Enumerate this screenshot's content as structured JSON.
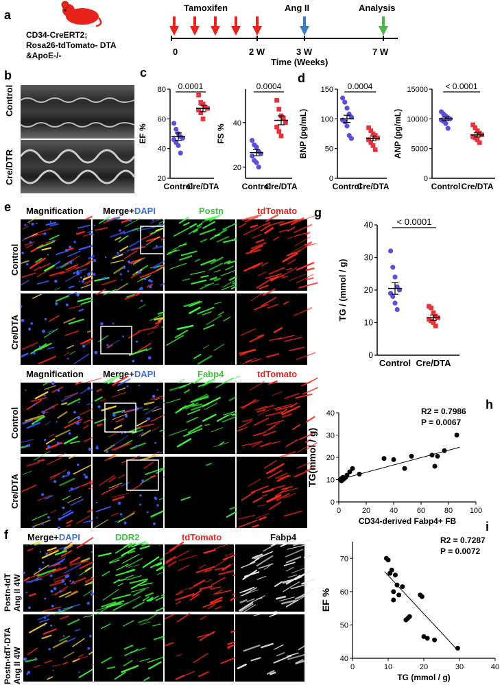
{
  "panel_labels": {
    "a": "a",
    "b": "b",
    "c": "c",
    "d": "d",
    "e": "e",
    "f": "f",
    "g": "g",
    "h": "h",
    "i": "i"
  },
  "panel_a": {
    "genotype_line1": "CD34-CreERT2;",
    "genotype_line2": "Rosa26-tdTomato- DTA",
    "genotype_line3": "&ApoE-/-",
    "tamoxifen_label": "Tamoxifen",
    "angii_label": "Ang II",
    "analysis_label": "Analysis",
    "tick_0": "0",
    "tick_2w": "2 W",
    "tick_3w": "3 W",
    "tick_7w": "7 W",
    "axis_label": "Time (Weeks)",
    "colors": {
      "tamoxifen": "#e8241a",
      "angii": "#3a7ec6",
      "analysis": "#4cb84c"
    }
  },
  "panel_b": {
    "row1": "Control",
    "row2": "Cre/DTR"
  },
  "panel_e": {
    "set1_headers": {
      "mag": "Magnification",
      "merge": "Merge+",
      "dapi": "DAPI",
      "marker": "Postn",
      "tdt": "tdTomato"
    },
    "set2_headers": {
      "mag": "Magnification",
      "merge": "Merge+",
      "dapi": "DAPI",
      "marker": "Fabp4",
      "tdt": "tdTomato"
    },
    "row_control": "Control",
    "row_cre": "Cre/DTA"
  },
  "panel_f": {
    "headers": {
      "merge": "Merge+",
      "dapi": "DAPI",
      "ddr2": "DDR2",
      "tdt": "tdTomato",
      "fabp4": "Fabp4"
    },
    "row1_line1": "Postn-tdT",
    "row1_line2": "Ang II 4W",
    "row2_line1": "Postn-tdT-DTA",
    "row2_line2": "Ang II 4W"
  },
  "chart_data": [
    {
      "panel": "c-EF",
      "type": "scatter",
      "categories": [
        "Control",
        "Cre/DTA"
      ],
      "ylabel": "EF %",
      "ylim": [
        20,
        80
      ],
      "yticks": [
        20,
        40,
        60,
        80
      ],
      "pvalue": "0.0001",
      "series": [
        {
          "name": "Control",
          "color": "#5a4fd6",
          "values": [
            57,
            53,
            50,
            48,
            47,
            46,
            44,
            42,
            37
          ],
          "mean": 48,
          "sem": 2.5
        },
        {
          "name": "Cre/DTA",
          "color": "#e8323c",
          "values": [
            76,
            71,
            70,
            68,
            67,
            66,
            64,
            60
          ],
          "mean": 67,
          "sem": 2.2
        }
      ]
    },
    {
      "panel": "c-FS",
      "type": "scatter",
      "categories": [
        "Control",
        "Cre/DTA"
      ],
      "ylabel": "FS %",
      "ylim": [
        15,
        55
      ],
      "yticks": [
        20,
        40
      ],
      "pvalue": "0.0004",
      "series": [
        {
          "name": "Control",
          "color": "#5a4fd6",
          "values": [
            32,
            30,
            29,
            27,
            26,
            25,
            23,
            22,
            20
          ],
          "mean": 26.5,
          "sem": 1.4
        },
        {
          "name": "Cre/DTA",
          "color": "#e8323c",
          "values": [
            50,
            46,
            43,
            42,
            40,
            38,
            36,
            34
          ],
          "mean": 41,
          "sem": 2.0
        }
      ]
    },
    {
      "panel": "d-BNP",
      "type": "scatter",
      "categories": [
        "Control",
        "Cre/DTA"
      ],
      "ylabel": "BNP (pg/mL)",
      "ylim": [
        0,
        150
      ],
      "yticks": [
        0,
        50,
        100,
        150
      ],
      "pvalue": "0.0004",
      "series": [
        {
          "name": "Control",
          "color": "#5a4fd6",
          "values": [
            135,
            128,
            118,
            108,
            103,
            98,
            95,
            88,
            72,
            67
          ],
          "mean": 100,
          "sem": 6
        },
        {
          "name": "Cre/DTA",
          "color": "#e8323c",
          "values": [
            85,
            80,
            75,
            72,
            68,
            65,
            60,
            55,
            48
          ],
          "mean": 67,
          "sem": 4
        }
      ]
    },
    {
      "panel": "d-ANP",
      "type": "scatter",
      "categories": [
        "Control",
        "Cre/DTA"
      ],
      "ylabel": "ANP (pg/mL)",
      "ylim": [
        0,
        15000
      ],
      "yticks": [
        0,
        5000,
        10000,
        15000
      ],
      "pvalue": "< 0.0001",
      "series": [
        {
          "name": "Control",
          "color": "#5a4fd6",
          "values": [
            11200,
            10800,
            10500,
            10200,
            10000,
            9800,
            9600,
            9200,
            8400
          ],
          "mean": 10000,
          "sem": 300
        },
        {
          "name": "Cre/DTA",
          "color": "#e8323c",
          "values": [
            9000,
            8500,
            8000,
            7600,
            7300,
            7000,
            6800,
            6500,
            6000
          ],
          "mean": 7300,
          "sem": 350
        }
      ]
    },
    {
      "panel": "g",
      "type": "scatter",
      "categories": [
        "Control",
        "Cre/DTA"
      ],
      "ylabel": "TG / (mmol / g)",
      "ylim": [
        0,
        40
      ],
      "yticks": [
        0,
        10,
        20,
        30,
        40
      ],
      "pvalue": "< 0.0001",
      "series": [
        {
          "name": "Control",
          "color": "#5a4fd6",
          "values": [
            32,
            27,
            24,
            21,
            20,
            19,
            18,
            16,
            14
          ],
          "mean": 20.5,
          "sem": 1.8
        },
        {
          "name": "Cre/DTA",
          "color": "#e8323c",
          "values": [
            15,
            14.5,
            13,
            12,
            11.5,
            11,
            10.5,
            10,
            9
          ],
          "mean": 11.5,
          "sem": 0.8
        }
      ]
    },
    {
      "panel": "h",
      "type": "scatter",
      "xlabel": "CD34-derived Fabp4+ FB",
      "ylabel": "TG(mmol / g)",
      "xlim": [
        0,
        100
      ],
      "ylim": [
        0,
        40
      ],
      "xticks": [
        0,
        20,
        40,
        60,
        80,
        100
      ],
      "yticks": [
        0,
        10,
        20,
        30,
        40
      ],
      "stats_r2": "R2 = 0.7986",
      "stats_p": "P = 0.0067",
      "points": [
        [
          1,
          10
        ],
        [
          2,
          9.5
        ],
        [
          2,
          10.5
        ],
        [
          3,
          10
        ],
        [
          3,
          11
        ],
        [
          4,
          10.5
        ],
        [
          5,
          11
        ],
        [
          6,
          12
        ],
        [
          8,
          13.5
        ],
        [
          10,
          15
        ],
        [
          15,
          12.5
        ],
        [
          33,
          19.5
        ],
        [
          40,
          19
        ],
        [
          48,
          15
        ],
        [
          53,
          20.5
        ],
        [
          68,
          21
        ],
        [
          70,
          16
        ],
        [
          72,
          20.5
        ],
        [
          77,
          23
        ],
        [
          86,
          30
        ]
      ],
      "fit": [
        [
          0,
          10
        ],
        [
          88,
          24.5
        ]
      ]
    },
    {
      "panel": "i",
      "type": "scatter",
      "xlabel": "TG (mmol / g)",
      "ylabel": "EF %",
      "xlim": [
        0,
        40
      ],
      "ylim": [
        40,
        75
      ],
      "xticks": [
        0,
        10,
        20,
        30,
        40
      ],
      "yticks": [
        40,
        50,
        60,
        70
      ],
      "stats_r2": "R2 = 0.7287",
      "stats_p": "P = 0.0072",
      "points": [
        [
          9.5,
          70
        ],
        [
          10,
          69.5
        ],
        [
          10.5,
          65.5
        ],
        [
          11,
          66.5
        ],
        [
          11.5,
          57.5
        ],
        [
          12,
          65
        ],
        [
          12.5,
          62
        ],
        [
          11.5,
          60
        ],
        [
          13,
          59
        ],
        [
          14,
          61.5
        ],
        [
          15,
          51.5
        ],
        [
          15.5,
          52
        ],
        [
          16,
          52.5
        ],
        [
          19,
          59
        ],
        [
          19.5,
          58.5
        ],
        [
          20,
          46.5
        ],
        [
          21,
          46
        ],
        [
          23,
          45.5
        ],
        [
          29.5,
          43
        ]
      ],
      "fit": [
        [
          9,
          66
        ],
        [
          29,
          43
        ]
      ]
    }
  ]
}
